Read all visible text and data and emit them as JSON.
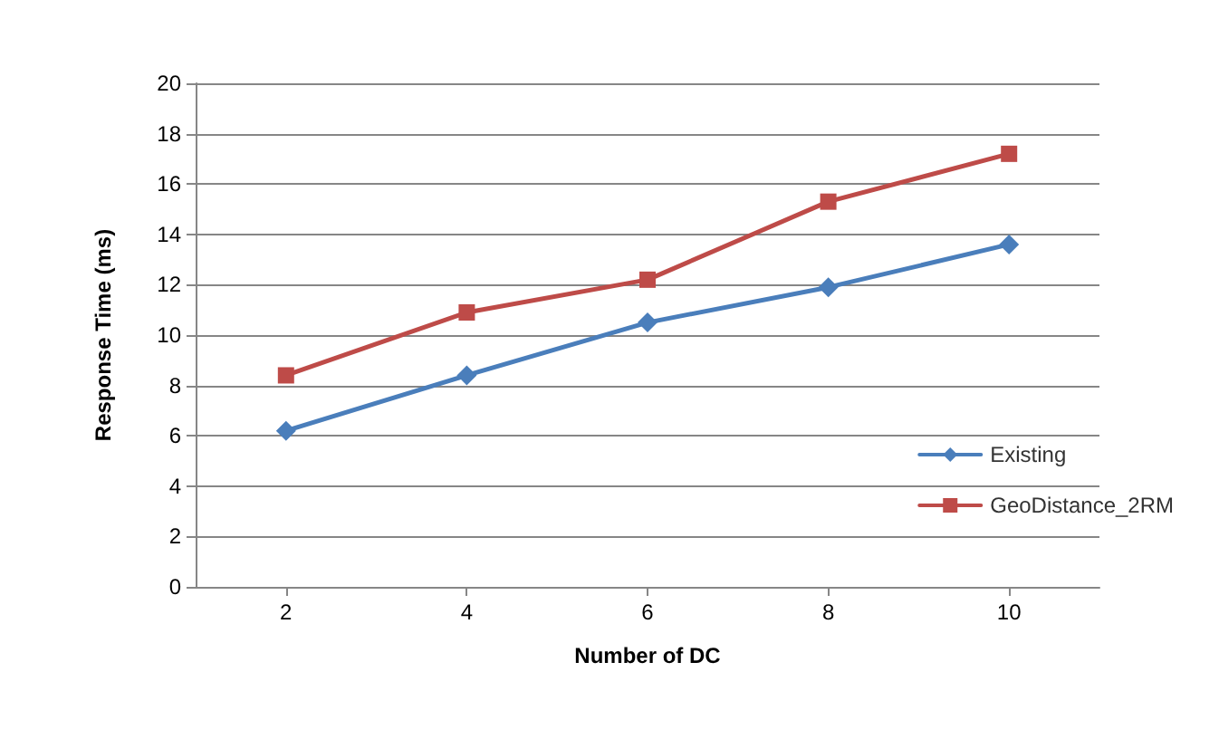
{
  "chart_data": {
    "type": "line",
    "xlabel": "Number of DC",
    "ylabel": "Response Time (ms)",
    "categories": [
      "2",
      "4",
      "6",
      "8",
      "10"
    ],
    "series": [
      {
        "name": "Existing",
        "color": "#4a7ebb",
        "marker": "diamond",
        "values": [
          6.2,
          8.4,
          10.5,
          11.9,
          13.6
        ]
      },
      {
        "name": "GeoDistance_2RM",
        "color": "#be4b48",
        "marker": "square",
        "values": [
          8.4,
          10.9,
          12.2,
          15.3,
          17.2
        ]
      }
    ],
    "ylim": [
      0,
      20
    ],
    "yticks": [
      0,
      2,
      4,
      6,
      8,
      10,
      12,
      14,
      16,
      18,
      20
    ],
    "grid": "y",
    "legend": "right",
    "line_style": "solid"
  }
}
